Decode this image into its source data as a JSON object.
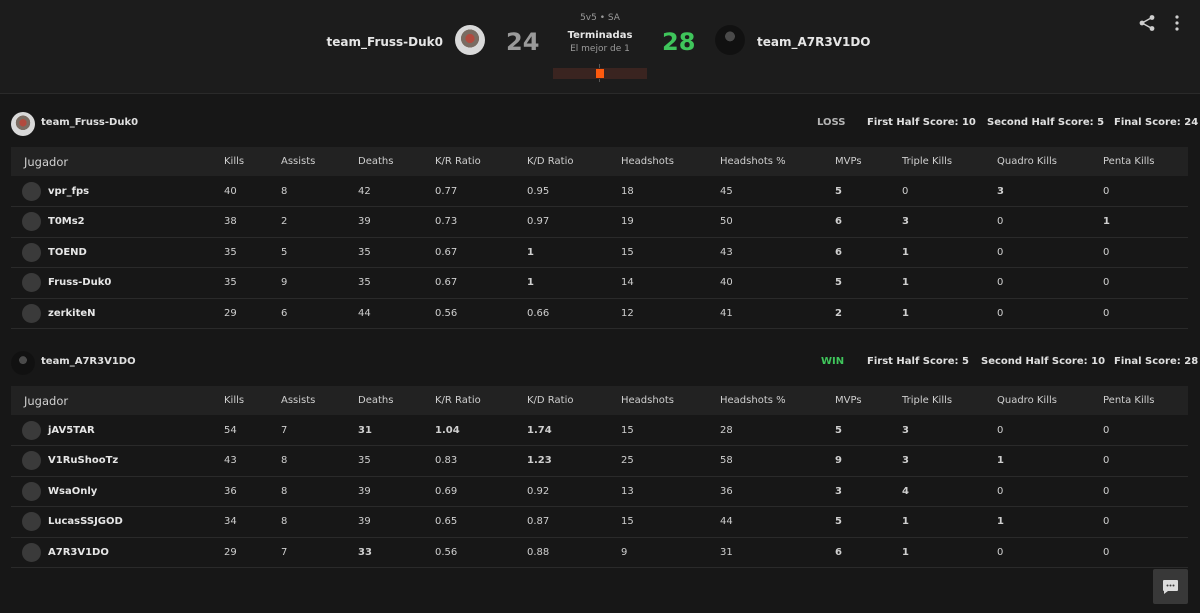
{
  "header": {
    "team_left": "team_Fruss-Duk0",
    "team_right": "team_A7R3V1DO",
    "score_left": "24",
    "score_right": "28",
    "mode": "5v5 • SA",
    "status": "Terminadas",
    "best_of": "El mejor de 1",
    "round_progress": 0.5,
    "accent": "#ff5a0e",
    "win_color": "#3fc55b",
    "share_icon": "share-icon",
    "more_icon": "more-vertical-icon"
  },
  "columns": [
    "Jugador",
    "Kills",
    "Assists",
    "Deaths",
    "K/R Ratio",
    "K/D Ratio",
    "Headshots",
    "Headshots %",
    "MVPs",
    "Triple Kills",
    "Quadro Kills",
    "Penta Kills"
  ],
  "teams": [
    {
      "name": "team_Fruss-Duk0",
      "result": "LOSS",
      "result_color": "#b5b5b5",
      "first_half": "First Half Score: 10",
      "second_half": "Second Half Score: 5",
      "final": "Final Score: 24",
      "players": [
        {
          "name": "vpr_fps",
          "stats": [
            "40",
            "8",
            "42",
            "0.77",
            "0.95",
            "18",
            "45",
            "5",
            "0",
            "3",
            "0"
          ]
        },
        {
          "name": "T0Ms2",
          "stats": [
            "38",
            "2",
            "39",
            "0.73",
            "0.97",
            "19",
            "50",
            "6",
            "3",
            "0",
            "1"
          ]
        },
        {
          "name": "TOEND",
          "stats": [
            "35",
            "5",
            "35",
            "0.67",
            "1",
            "15",
            "43",
            "6",
            "1",
            "0",
            "0"
          ]
        },
        {
          "name": "Fruss-Duk0",
          "stats": [
            "35",
            "9",
            "35",
            "0.67",
            "1",
            "14",
            "40",
            "5",
            "1",
            "0",
            "0"
          ]
        },
        {
          "name": "zerkiteN",
          "stats": [
            "29",
            "6",
            "44",
            "0.56",
            "0.66",
            "12",
            "41",
            "2",
            "1",
            "0",
            "0"
          ]
        }
      ]
    },
    {
      "name": "team_A7R3V1DO",
      "result": "WIN",
      "result_color": "#3fc55b",
      "first_half": "First Half Score: 5",
      "second_half": "Second Half Score: 10",
      "final": "Final Score: 28",
      "players": [
        {
          "name": "jAV5TAR",
          "stats": [
            "54",
            "7",
            "31",
            "1.04",
            "1.74",
            "15",
            "28",
            "5",
            "3",
            "0",
            "0"
          ]
        },
        {
          "name": "V1RuShooTz",
          "stats": [
            "43",
            "8",
            "35",
            "0.83",
            "1.23",
            "25",
            "58",
            "9",
            "3",
            "1",
            "0"
          ]
        },
        {
          "name": "WsaOnly",
          "stats": [
            "36",
            "8",
            "39",
            "0.69",
            "0.92",
            "13",
            "36",
            "3",
            "4",
            "0",
            "0"
          ]
        },
        {
          "name": "LucasSSJGOD",
          "stats": [
            "34",
            "8",
            "39",
            "0.65",
            "0.87",
            "15",
            "44",
            "5",
            "1",
            "1",
            "0"
          ]
        },
        {
          "name": "A7R3V1DO",
          "stats": [
            "29",
            "7",
            "33",
            "0.56",
            "0.88",
            "9",
            "31",
            "6",
            "1",
            "0",
            "0"
          ]
        }
      ]
    }
  ],
  "chat_icon": "chat-icon"
}
